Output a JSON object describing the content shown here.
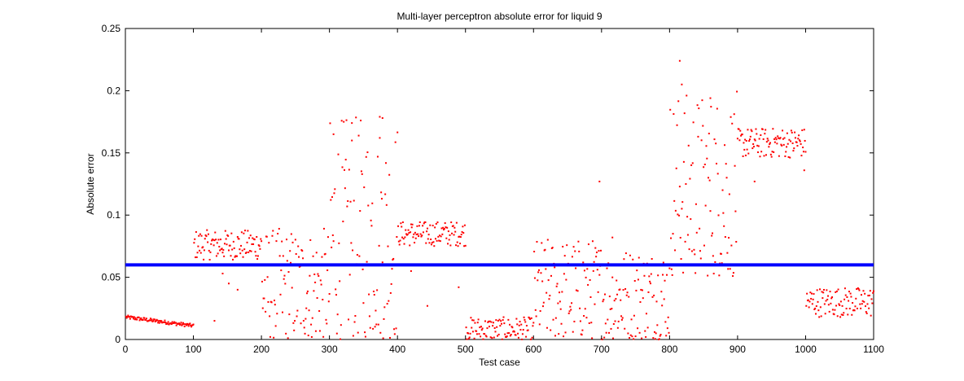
{
  "chart_data": {
    "type": "scatter",
    "title": "Multi-layer perceptron absolute error for liquid 9",
    "xlabel": "Test case",
    "ylabel": "Absolute error",
    "xlim": [
      0,
      1100
    ],
    "ylim": [
      0,
      0.25
    ],
    "xticks": [
      0,
      100,
      200,
      300,
      400,
      500,
      600,
      700,
      800,
      900,
      1000,
      1100
    ],
    "yticks": [
      0,
      0.05,
      0.1,
      0.15,
      0.2,
      0.25
    ],
    "ytick_labels": [
      "0",
      "0.05",
      "0.1",
      "0.15",
      "0.2",
      "0.25"
    ],
    "grid": false,
    "series": [
      {
        "kind": "points",
        "color": "#ff0000",
        "marker": "dot",
        "segments": [
          {
            "x_range": [
              1,
              100
            ],
            "pattern": "decreasing",
            "from": 0.018,
            "to": 0.011,
            "spread": 0.003
          },
          {
            "x_range": [
              101,
              200
            ],
            "pattern": "band",
            "center": 0.076,
            "spread": 0.012,
            "outliers": [
              [
                131,
                0.015
              ],
              [
                143,
                0.053
              ],
              [
                152,
                0.045
              ],
              [
                165,
                0.04
              ]
            ]
          },
          {
            "x_range": [
              201,
              300
            ],
            "pattern": "scatter",
            "min": 0.0,
            "max": 0.09
          },
          {
            "x_range": [
              301,
              400
            ],
            "pattern": "scatter",
            "min": 0.0,
            "max": 0.18,
            "outliers": [
              [
                306,
                0.165
              ],
              [
                333,
                0.174
              ],
              [
                374,
                0.179
              ],
              [
                378,
                0.178
              ]
            ]
          },
          {
            "x_range": [
              401,
              500
            ],
            "pattern": "band",
            "center": 0.085,
            "spread": 0.01,
            "outliers": [
              [
                420,
                0.055
              ],
              [
                444,
                0.027
              ],
              [
                490,
                0.042
              ]
            ]
          },
          {
            "x_range": [
              501,
              600
            ],
            "pattern": "scatter",
            "min": 0.0,
            "max": 0.018
          },
          {
            "x_range": [
              601,
              700
            ],
            "pattern": "scatter",
            "min": 0.0,
            "max": 0.082,
            "outliers": [
              [
                697,
                0.127
              ]
            ]
          },
          {
            "x_range": [
              701,
              800
            ],
            "pattern": "scatter",
            "min": 0.0,
            "max": 0.075,
            "outliers": [
              [
                716,
                0.082
              ]
            ]
          },
          {
            "x_range": [
              801,
              900
            ],
            "pattern": "scatter",
            "min": 0.05,
            "max": 0.2,
            "outliers": [
              [
                815,
                0.224
              ],
              [
                818,
                0.205
              ],
              [
                860,
                0.194
              ]
            ]
          },
          {
            "x_range": [
              901,
              1000
            ],
            "pattern": "band",
            "center": 0.158,
            "spread": 0.012,
            "outliers": [
              [
                925,
                0.127
              ],
              [
                998,
                0.136
              ]
            ]
          },
          {
            "x_range": [
              1001,
              1100
            ],
            "pattern": "band",
            "center": 0.03,
            "spread": 0.012
          }
        ]
      },
      {
        "kind": "hline",
        "color": "#0000ff",
        "y": 0.06
      }
    ]
  }
}
